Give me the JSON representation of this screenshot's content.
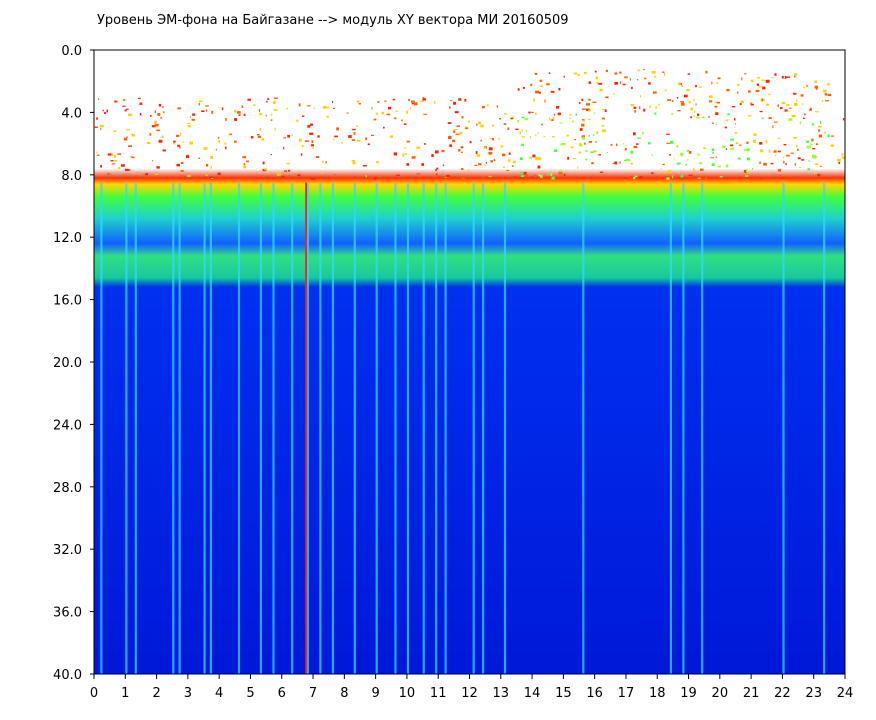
{
  "chart_data": {
    "type": "heatmap",
    "title": "Уровень ЭМ-фона на Байгазане  -->  модуль XY вектора МИ  20160509",
    "xlabel": "",
    "ylabel": "",
    "x_ticks": [
      "0",
      "1",
      "2",
      "3",
      "4",
      "5",
      "6",
      "7",
      "8",
      "9",
      "10",
      "11",
      "12",
      "13",
      "14",
      "15",
      "16",
      "17",
      "18",
      "19",
      "20",
      "21",
      "22",
      "23",
      "24"
    ],
    "y_ticks": [
      "0.0",
      "4.0",
      "8.0",
      "12.0",
      "16.0",
      "20.0",
      "24.0",
      "28.0",
      "32.0",
      "36.0",
      "40.0"
    ],
    "xlim": [
      0,
      24
    ],
    "ylim": [
      0,
      40
    ],
    "y_inverted": true,
    "colormap": [
      "#0015d8",
      "#0040ff",
      "#18c8ff",
      "#30ff60",
      "#f0ff00",
      "#ff2000"
    ],
    "band_levels": [
      {
        "y_from": 0,
        "y_to": 8,
        "value": "sparse high (red/yellow/green speckle)"
      },
      {
        "y_from": 8,
        "y_to": 9,
        "value": "red-yellow edge"
      },
      {
        "y_from": 9,
        "y_to": 15,
        "value": "green/cyan with blue patches"
      },
      {
        "y_from": 15,
        "y_to": 40,
        "value": "low (blue) with vertical bright streaks"
      }
    ],
    "bright_streaks_x": [
      0.2,
      1.0,
      1.3,
      2.5,
      2.7,
      3.5,
      3.7,
      4.6,
      5.3,
      5.7,
      6.3,
      6.8,
      7.2,
      7.6,
      8.3,
      9.0,
      9.6,
      10.0,
      10.5,
      10.9,
      11.2,
      12.1,
      12.4,
      13.1,
      15.6,
      18.4,
      18.8,
      19.4,
      22.0,
      23.3
    ],
    "red_streaks_x": [
      6.75
    ]
  }
}
